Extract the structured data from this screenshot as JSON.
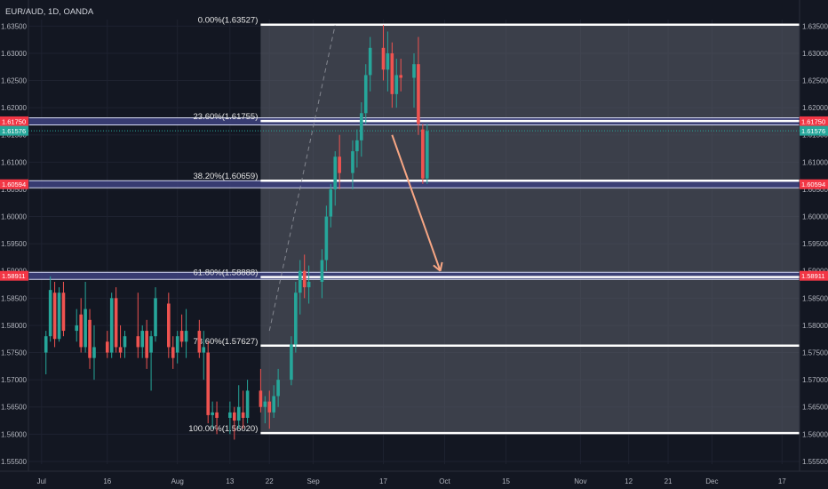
{
  "header": {
    "symbol_title": "EUR/AUD, 1D, OANDA"
  },
  "colors": {
    "background": "#131722",
    "fib_zone": "#5d606b",
    "bull": "#26a69a",
    "bear": "#ef5350",
    "fib_line": "#ffffff",
    "zone_band": "#3c3f7a",
    "red_tag": "#f23645",
    "teal_tag": "#26a69a",
    "arrow": "#f7a684",
    "axis_text": "#b2b5be"
  },
  "chart_data": {
    "type": "candlestick",
    "title": "EUR/AUD, 1D, OANDA",
    "ylim": [
      1.5545,
      1.6362
    ],
    "y_ticks": [
      "1.55500",
      "1.56000",
      "1.56500",
      "1.57000",
      "1.57500",
      "1.58000",
      "1.58500",
      "1.59000",
      "1.59500",
      "1.60000",
      "1.60500",
      "1.61000",
      "1.61500",
      "1.62000",
      "1.62500",
      "1.63000",
      "1.63500"
    ],
    "x_labels": [
      "Jul",
      "16",
      "Aug",
      "13",
      "22",
      "Sep",
      "17",
      "Oct",
      "15",
      "Nov",
      "12",
      "21",
      "Dec",
      "17"
    ],
    "x_label_dates": [
      "2018-07-01",
      "2018-07-16",
      "2018-08-01",
      "2018-08-13",
      "2018-08-22",
      "2018-09-01",
      "2018-09-17",
      "2018-10-01",
      "2018-10-15",
      "2018-11-01",
      "2018-11-12",
      "2018-11-21",
      "2018-12-01",
      "2018-12-17"
    ],
    "candles": [
      {
        "o": 1.575,
        "h": 1.579,
        "l": 1.571,
        "c": 1.578
      },
      {
        "o": 1.578,
        "h": 1.589,
        "l": 1.577,
        "c": 1.5865
      },
      {
        "o": 1.586,
        "h": 1.588,
        "l": 1.576,
        "c": 1.5775
      },
      {
        "o": 1.5775,
        "h": 1.587,
        "l": 1.577,
        "c": 1.586
      },
      {
        "o": 1.586,
        "h": 1.588,
        "l": 1.578,
        "c": 1.579
      },
      {
        "o": 1.579,
        "h": 1.583,
        "l": 1.577,
        "c": 1.58
      },
      {
        "o": 1.582,
        "h": 1.585,
        "l": 1.575,
        "c": 1.576
      },
      {
        "o": 1.576,
        "h": 1.588,
        "l": 1.575,
        "c": 1.583
      },
      {
        "o": 1.581,
        "h": 1.583,
        "l": 1.572,
        "c": 1.574
      },
      {
        "o": 1.574,
        "h": 1.58,
        "l": 1.57,
        "c": 1.576
      },
      {
        "o": 1.577,
        "h": 1.579,
        "l": 1.574,
        "c": 1.575
      },
      {
        "o": 1.575,
        "h": 1.586,
        "l": 1.574,
        "c": 1.585
      },
      {
        "o": 1.585,
        "h": 1.587,
        "l": 1.575,
        "c": 1.576
      },
      {
        "o": 1.576,
        "h": 1.58,
        "l": 1.574,
        "c": 1.575
      },
      {
        "o": 1.576,
        "h": 1.579,
        "l": 1.574,
        "c": 1.578
      },
      {
        "o": 1.578,
        "h": 1.586,
        "l": 1.574,
        "c": 1.576
      },
      {
        "o": 1.576,
        "h": 1.58,
        "l": 1.574,
        "c": 1.579
      },
      {
        "o": 1.579,
        "h": 1.581,
        "l": 1.572,
        "c": 1.574
      },
      {
        "o": 1.575,
        "h": 1.579,
        "l": 1.568,
        "c": 1.578
      },
      {
        "o": 1.578,
        "h": 1.587,
        "l": 1.577,
        "c": 1.585
      },
      {
        "o": 1.584,
        "h": 1.586,
        "l": 1.574,
        "c": 1.576
      },
      {
        "o": 1.576,
        "h": 1.578,
        "l": 1.572,
        "c": 1.574
      },
      {
        "o": 1.575,
        "h": 1.579,
        "l": 1.573,
        "c": 1.578
      },
      {
        "o": 1.579,
        "h": 1.582,
        "l": 1.576,
        "c": 1.577
      },
      {
        "o": 1.577,
        "h": 1.583,
        "l": 1.574,
        "c": 1.579
      },
      {
        "o": 1.579,
        "h": 1.581,
        "l": 1.574,
        "c": 1.575
      },
      {
        "o": 1.575,
        "h": 1.579,
        "l": 1.57,
        "c": 1.576
      },
      {
        "o": 1.575,
        "h": 1.577,
        "l": 1.562,
        "c": 1.5635
      },
      {
        "o": 1.5635,
        "h": 1.566,
        "l": 1.561,
        "c": 1.564
      },
      {
        "o": 1.564,
        "h": 1.566,
        "l": 1.56,
        "c": 1.563
      },
      {
        "o": 1.563,
        "h": 1.566,
        "l": 1.56,
        "c": 1.564
      },
      {
        "o": 1.564,
        "h": 1.565,
        "l": 1.559,
        "c": 1.5625
      },
      {
        "o": 1.5625,
        "h": 1.569,
        "l": 1.561,
        "c": 1.565
      },
      {
        "o": 1.564,
        "h": 1.568,
        "l": 1.561,
        "c": 1.563
      },
      {
        "o": 1.563,
        "h": 1.57,
        "l": 1.562,
        "c": 1.568
      },
      {
        "o": 1.568,
        "h": 1.572,
        "l": 1.564,
        "c": 1.565
      },
      {
        "o": 1.565,
        "h": 1.567,
        "l": 1.562,
        "c": 1.566
      },
      {
        "o": 1.566,
        "h": 1.568,
        "l": 1.561,
        "c": 1.564
      },
      {
        "o": 1.564,
        "h": 1.569,
        "l": 1.563,
        "c": 1.567
      },
      {
        "o": 1.567,
        "h": 1.572,
        "l": 1.565,
        "c": 1.57
      },
      {
        "o": 1.57,
        "h": 1.578,
        "l": 1.569,
        "c": 1.5765
      },
      {
        "o": 1.5765,
        "h": 1.588,
        "l": 1.575,
        "c": 1.586
      },
      {
        "o": 1.586,
        "h": 1.592,
        "l": 1.582,
        "c": 1.59
      },
      {
        "o": 1.59,
        "h": 1.593,
        "l": 1.585,
        "c": 1.587
      },
      {
        "o": 1.587,
        "h": 1.591,
        "l": 1.584,
        "c": 1.588
      },
      {
        "o": 1.588,
        "h": 1.594,
        "l": 1.585,
        "c": 1.592
      },
      {
        "o": 1.592,
        "h": 1.602,
        "l": 1.59,
        "c": 1.6
      },
      {
        "o": 1.6,
        "h": 1.606,
        "l": 1.598,
        "c": 1.605
      },
      {
        "o": 1.605,
        "h": 1.612,
        "l": 1.602,
        "c": 1.611
      },
      {
        "o": 1.611,
        "h": 1.615,
        "l": 1.605,
        "c": 1.608
      },
      {
        "o": 1.608,
        "h": 1.614,
        "l": 1.605,
        "c": 1.612
      },
      {
        "o": 1.612,
        "h": 1.616,
        "l": 1.609,
        "c": 1.614
      },
      {
        "o": 1.614,
        "h": 1.621,
        "l": 1.611,
        "c": 1.619
      },
      {
        "o": 1.619,
        "h": 1.628,
        "l": 1.617,
        "c": 1.626
      },
      {
        "o": 1.626,
        "h": 1.633,
        "l": 1.623,
        "c": 1.631
      },
      {
        "o": 1.631,
        "h": 1.6352,
        "l": 1.625,
        "c": 1.627
      },
      {
        "o": 1.627,
        "h": 1.634,
        "l": 1.623,
        "c": 1.63
      },
      {
        "o": 1.63,
        "h": 1.632,
        "l": 1.62,
        "c": 1.6225
      },
      {
        "o": 1.6225,
        "h": 1.629,
        "l": 1.62,
        "c": 1.626
      },
      {
        "o": 1.626,
        "h": 1.629,
        "l": 1.623,
        "c": 1.6255
      },
      {
        "o": 1.6255,
        "h": 1.63,
        "l": 1.62,
        "c": 1.628
      },
      {
        "o": 1.628,
        "h": 1.633,
        "l": 1.615,
        "c": 1.617
      },
      {
        "o": 1.616,
        "h": 1.617,
        "l": 1.606,
        "c": 1.607
      },
      {
        "o": 1.607,
        "h": 1.617,
        "l": 1.606,
        "c": 1.6157
      }
    ],
    "fib_levels": [
      {
        "label": "0.00%(1.63527)",
        "price": 1.63527
      },
      {
        "label": "23.60%(1.61755)",
        "price": 1.61755
      },
      {
        "label": "38.20%(1.60659)",
        "price": 1.60659
      },
      {
        "label": "61.80%(1.58888)",
        "price": 1.58888
      },
      {
        "label": "78.60%(1.57627)",
        "price": 1.57627
      },
      {
        "label": "100.00%(1.56020)",
        "price": 1.5602
      }
    ],
    "price_tags": [
      {
        "text": "1.61750",
        "price": 1.6175,
        "color": "#f23645"
      },
      {
        "text": "1.61576",
        "price": 1.61576,
        "color": "#26a69a"
      },
      {
        "text": "1.60594",
        "price": 1.60594,
        "color": "#f23645"
      },
      {
        "text": "1.58911",
        "price": 1.58911,
        "color": "#f23645"
      }
    ],
    "horizontal_zones": [
      {
        "price": 1.6175
      },
      {
        "price": 1.60594
      },
      {
        "price": 1.58911
      }
    ],
    "last_price": 1.61576,
    "arrow": {
      "from_date": "2018-09-19",
      "from_price": 1.615,
      "to_date": "2018-09-30",
      "to_price": 1.59
    },
    "fib_zone": {
      "from_date": "2018-08-20",
      "to_date": "2018-12-21"
    },
    "dashed_trend": {
      "from_date": "2018-08-22",
      "from_price": 1.579,
      "to_date": "2018-09-06",
      "to_price": 1.6352
    }
  }
}
